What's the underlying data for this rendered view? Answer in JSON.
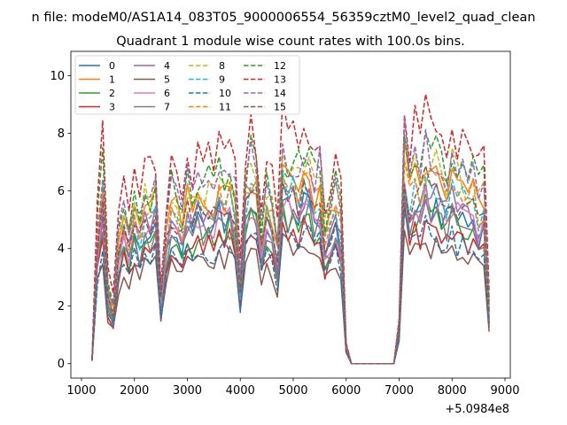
{
  "figure": {
    "suptitle": "n file: modeM0/AS1A14_083T05_9000006554_56359cztM0_level2_quad_clean",
    "title": "Quadrant 1 module wise count rates with 100.0s bins.",
    "offset_label": "+5.0984e8"
  },
  "chart_data": {
    "type": "line",
    "title": "Quadrant 1 module wise count rates with 100.0s bins.",
    "xlabel": "",
    "ylabel": "",
    "x_offset": 509840000,
    "xlim": [
      800,
      9100
    ],
    "ylim": [
      -0.5,
      10.85
    ],
    "xticks": [
      1000,
      2000,
      3000,
      4000,
      5000,
      6000,
      7000,
      8000,
      9000
    ],
    "xtick_labels": [
      "1000",
      "2000",
      "3000",
      "4000",
      "5000",
      "6000",
      "7000",
      "8000",
      "9000"
    ],
    "yticks": [
      0,
      2,
      4,
      6,
      8,
      10
    ],
    "ytick_labels": [
      "0",
      "2",
      "4",
      "6",
      "8",
      "10"
    ],
    "grid": false,
    "legend_placement": "top-left",
    "legend_columns": 4,
    "x": [
      1200,
      1300,
      1400,
      1500,
      1600,
      1700,
      1800,
      1900,
      2000,
      2100,
      2200,
      2300,
      2400,
      2500,
      2600,
      2700,
      2800,
      2900,
      3000,
      3100,
      3200,
      3300,
      3400,
      3500,
      3600,
      3700,
      3800,
      3900,
      4000,
      4100,
      4200,
      4300,
      4400,
      4500,
      4600,
      4700,
      4800,
      4900,
      5000,
      5100,
      5200,
      5300,
      5400,
      5500,
      5600,
      5700,
      5800,
      5900,
      6000,
      6100,
      6200,
      6300,
      6400,
      6500,
      6600,
      6700,
      6800,
      6900,
      7000,
      7100,
      7200,
      7300,
      7400,
      7500,
      7600,
      7700,
      7800,
      7900,
      8000,
      8100,
      8200,
      8300,
      8400,
      8500,
      8600,
      8700
    ],
    "profile": [
      0.02,
      0.62,
      0.85,
      0.35,
      0.26,
      0.58,
      0.7,
      0.62,
      0.75,
      0.66,
      0.78,
      0.72,
      0.8,
      0.32,
      0.62,
      0.76,
      0.74,
      0.66,
      0.8,
      0.73,
      0.82,
      0.76,
      0.8,
      0.78,
      0.86,
      0.8,
      0.84,
      0.76,
      0.38,
      0.82,
      0.92,
      0.86,
      0.6,
      0.78,
      0.7,
      0.54,
      0.92,
      0.88,
      0.9,
      0.84,
      0.94,
      0.9,
      0.8,
      0.86,
      0.62,
      0.68,
      0.78,
      0.66,
      0.08,
      0.0,
      0.0,
      0.0,
      0.0,
      0.0,
      0.0,
      0.0,
      0.0,
      0.0,
      0.18,
      1.0,
      0.82,
      0.9,
      0.86,
      0.96,
      0.88,
      0.92,
      0.86,
      0.82,
      0.9,
      0.84,
      0.86,
      0.8,
      0.84,
      0.74,
      0.78,
      0.26
    ],
    "series_spec": [
      {
        "name": "0",
        "level": 6.0,
        "seed": 1,
        "color": "#1f77b4",
        "dashed": false
      },
      {
        "name": "1",
        "level": 7.2,
        "seed": 2,
        "color": "#ff7f0e",
        "dashed": false
      },
      {
        "name": "2",
        "level": 5.6,
        "seed": 3,
        "color": "#2ca02c",
        "dashed": false
      },
      {
        "name": "3",
        "level": 5.1,
        "seed": 4,
        "color": "#d62728",
        "dashed": false
      },
      {
        "name": "4",
        "level": 6.3,
        "seed": 5,
        "color": "#9467bd",
        "dashed": false
      },
      {
        "name": "5",
        "level": 4.5,
        "seed": 6,
        "color": "#8c564b",
        "dashed": false
      },
      {
        "name": "6",
        "level": 6.1,
        "seed": 7,
        "color": "#e377c2",
        "dashed": false
      },
      {
        "name": "7",
        "level": 5.7,
        "seed": 8,
        "color": "#7f7f7f",
        "dashed": false
      },
      {
        "name": "8",
        "level": 7.6,
        "seed": 9,
        "color": "#bcbd22",
        "dashed": true
      },
      {
        "name": "9",
        "level": 6.6,
        "seed": 10,
        "color": "#17becf",
        "dashed": true
      },
      {
        "name": "10",
        "level": 4.9,
        "seed": 11,
        "color": "#1f77b4",
        "dashed": true
      },
      {
        "name": "11",
        "level": 7.0,
        "seed": 12,
        "color": "#ff7f0e",
        "dashed": true
      },
      {
        "name": "12",
        "level": 8.1,
        "seed": 13,
        "color": "#2ca02c",
        "dashed": true
      },
      {
        "name": "13",
        "level": 9.2,
        "seed": 14,
        "color": "#d62728",
        "dashed": true
      },
      {
        "name": "14",
        "level": 7.9,
        "seed": 15,
        "color": "#9467bd",
        "dashed": true
      },
      {
        "name": "15",
        "level": 6.6,
        "seed": 16,
        "color": "#8c564b",
        "dashed": true
      }
    ]
  }
}
